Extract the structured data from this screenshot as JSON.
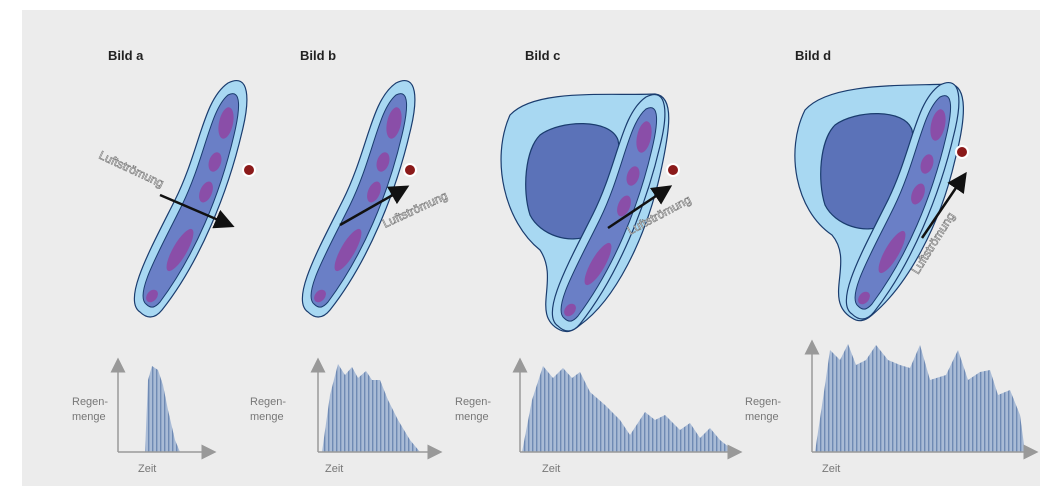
{
  "panels": [
    {
      "title": "Bild a",
      "arrow_label": "Luftströmung",
      "y_label": [
        "Regen-",
        "menge"
      ],
      "x_label": "Zeit"
    },
    {
      "title": "Bild b",
      "arrow_label": "Luftströmung",
      "y_label": [
        "Regen-",
        "menge"
      ],
      "x_label": "Zeit"
    },
    {
      "title": "Bild c",
      "arrow_label": "Luftströmung",
      "y_label": [
        "Regen-",
        "menge"
      ],
      "x_label": "Zeit"
    },
    {
      "title": "Bild d",
      "arrow_label": "Luftströmung",
      "y_label": [
        "Regen-",
        "menge"
      ],
      "x_label": "Zeit"
    }
  ]
}
